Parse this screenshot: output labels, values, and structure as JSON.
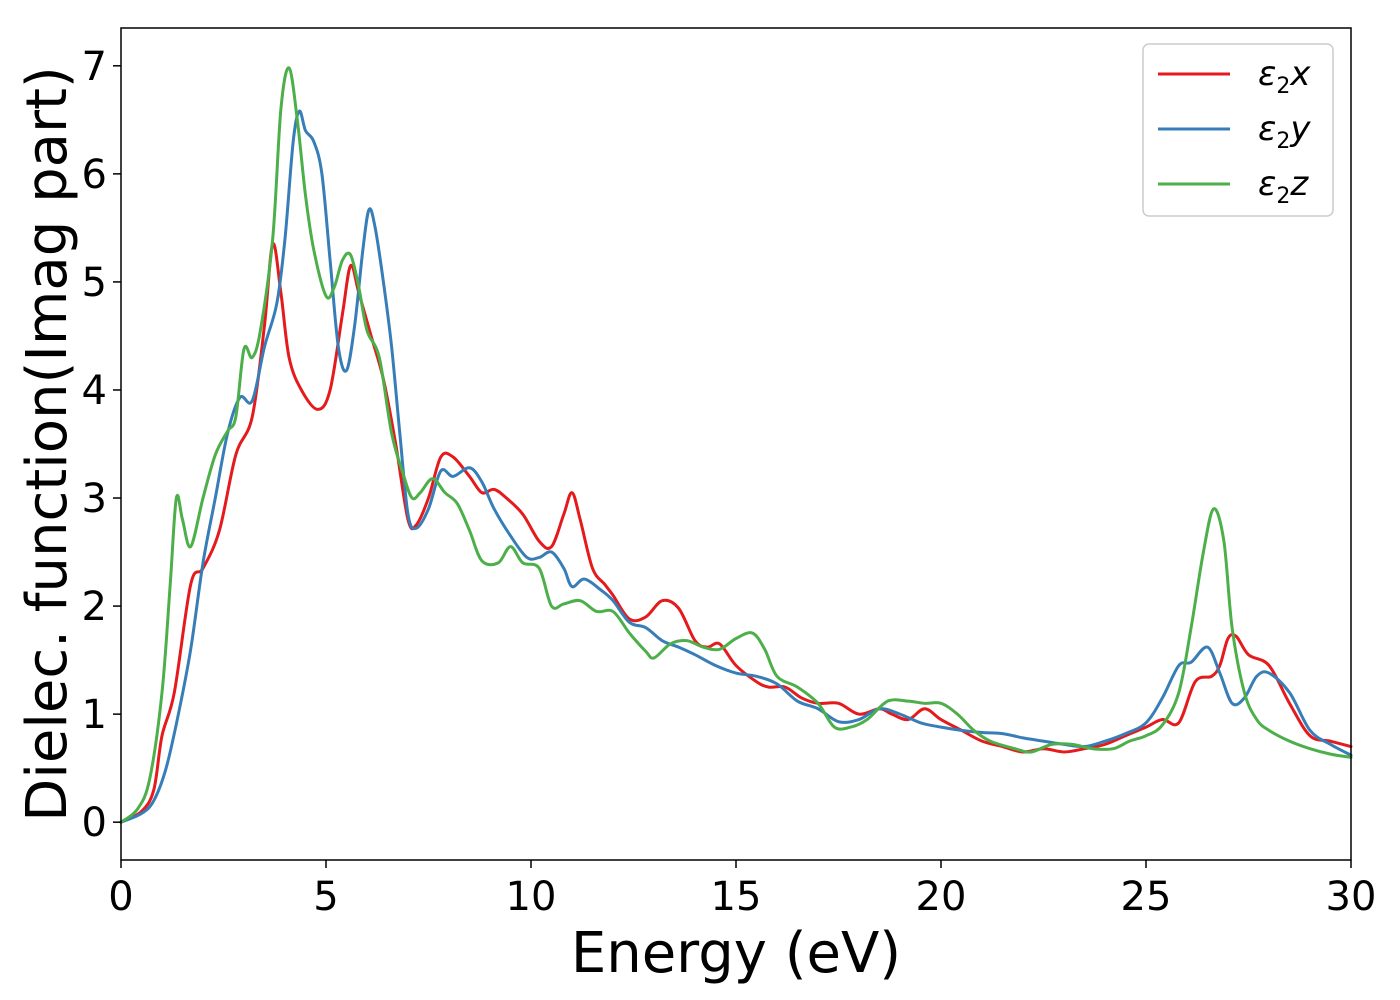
{
  "chart_data": {
    "type": "line",
    "xlabel": "Energy (eV)",
    "ylabel": "Dielec. function(Imag part)",
    "xlim": [
      0,
      30
    ],
    "ylim": [
      -0.35,
      7.35
    ],
    "xticks": [
      0,
      5,
      10,
      15,
      20,
      25,
      30
    ],
    "yticks": [
      0,
      1,
      2,
      3,
      4,
      5,
      6,
      7
    ],
    "grid": false,
    "legend_position": "top-right",
    "series": [
      {
        "name": "ε2x",
        "legend_base": "ε",
        "legend_sub": "2",
        "legend_tail": "x",
        "color": "#e41a1c",
        "points": [
          [
            0,
            0
          ],
          [
            0.5,
            0.1
          ],
          [
            0.8,
            0.3
          ],
          [
            1.0,
            0.8
          ],
          [
            1.3,
            1.2
          ],
          [
            1.7,
            2.2
          ],
          [
            2.0,
            2.35
          ],
          [
            2.4,
            2.7
          ],
          [
            2.8,
            3.4
          ],
          [
            3.2,
            3.75
          ],
          [
            3.5,
            4.6
          ],
          [
            3.7,
            5.35
          ],
          [
            3.9,
            4.9
          ],
          [
            4.1,
            4.3
          ],
          [
            4.4,
            4.0
          ],
          [
            4.8,
            3.82
          ],
          [
            5.1,
            4.0
          ],
          [
            5.4,
            4.7
          ],
          [
            5.6,
            5.15
          ],
          [
            5.8,
            4.9
          ],
          [
            6.1,
            4.5
          ],
          [
            6.4,
            4.1
          ],
          [
            6.7,
            3.5
          ],
          [
            7.0,
            2.8
          ],
          [
            7.2,
            2.75
          ],
          [
            7.5,
            3.0
          ],
          [
            7.8,
            3.38
          ],
          [
            8.1,
            3.38
          ],
          [
            8.5,
            3.2
          ],
          [
            8.8,
            3.05
          ],
          [
            9.1,
            3.08
          ],
          [
            9.4,
            3.0
          ],
          [
            9.8,
            2.85
          ],
          [
            10.2,
            2.6
          ],
          [
            10.5,
            2.55
          ],
          [
            10.8,
            2.85
          ],
          [
            11.0,
            3.05
          ],
          [
            11.2,
            2.8
          ],
          [
            11.5,
            2.35
          ],
          [
            11.8,
            2.2
          ],
          [
            12.0,
            2.1
          ],
          [
            12.4,
            1.88
          ],
          [
            12.8,
            1.9
          ],
          [
            13.2,
            2.05
          ],
          [
            13.6,
            1.98
          ],
          [
            14.0,
            1.68
          ],
          [
            14.3,
            1.62
          ],
          [
            14.6,
            1.65
          ],
          [
            15.0,
            1.45
          ],
          [
            15.5,
            1.3
          ],
          [
            15.8,
            1.25
          ],
          [
            16.2,
            1.25
          ],
          [
            16.6,
            1.15
          ],
          [
            17.0,
            1.1
          ],
          [
            17.5,
            1.1
          ],
          [
            18.0,
            1.0
          ],
          [
            18.5,
            1.05
          ],
          [
            18.8,
            1.0
          ],
          [
            19.2,
            0.95
          ],
          [
            19.6,
            1.05
          ],
          [
            20.0,
            0.95
          ],
          [
            20.5,
            0.85
          ],
          [
            21.0,
            0.75
          ],
          [
            21.5,
            0.7
          ],
          [
            22.0,
            0.65
          ],
          [
            22.5,
            0.68
          ],
          [
            23.0,
            0.65
          ],
          [
            23.5,
            0.68
          ],
          [
            24.0,
            0.72
          ],
          [
            24.5,
            0.8
          ],
          [
            25.0,
            0.88
          ],
          [
            25.4,
            0.95
          ],
          [
            25.8,
            0.92
          ],
          [
            26.2,
            1.3
          ],
          [
            26.6,
            1.35
          ],
          [
            26.8,
            1.45
          ],
          [
            27.0,
            1.7
          ],
          [
            27.2,
            1.72
          ],
          [
            27.5,
            1.55
          ],
          [
            28.0,
            1.45
          ],
          [
            28.5,
            1.1
          ],
          [
            29.0,
            0.8
          ],
          [
            29.5,
            0.75
          ],
          [
            30.0,
            0.7
          ]
        ]
      },
      {
        "name": "ε2y",
        "legend_base": "ε",
        "legend_sub": "2",
        "legend_tail": "y",
        "color": "#377eb8",
        "points": [
          [
            0,
            0
          ],
          [
            0.5,
            0.08
          ],
          [
            0.8,
            0.2
          ],
          [
            1.1,
            0.5
          ],
          [
            1.4,
            1.0
          ],
          [
            1.7,
            1.6
          ],
          [
            2.0,
            2.4
          ],
          [
            2.3,
            3.0
          ],
          [
            2.6,
            3.6
          ],
          [
            2.9,
            3.93
          ],
          [
            3.2,
            3.9
          ],
          [
            3.5,
            4.4
          ],
          [
            3.8,
            4.8
          ],
          [
            4.0,
            5.4
          ],
          [
            4.2,
            6.3
          ],
          [
            4.35,
            6.58
          ],
          [
            4.5,
            6.4
          ],
          [
            4.7,
            6.3
          ],
          [
            4.9,
            6.0
          ],
          [
            5.1,
            5.2
          ],
          [
            5.3,
            4.4
          ],
          [
            5.5,
            4.18
          ],
          [
            5.7,
            4.6
          ],
          [
            5.9,
            5.3
          ],
          [
            6.05,
            5.67
          ],
          [
            6.2,
            5.5
          ],
          [
            6.4,
            5.0
          ],
          [
            6.6,
            4.4
          ],
          [
            6.8,
            3.6
          ],
          [
            7.0,
            2.85
          ],
          [
            7.2,
            2.72
          ],
          [
            7.5,
            2.9
          ],
          [
            7.8,
            3.25
          ],
          [
            8.1,
            3.2
          ],
          [
            8.5,
            3.28
          ],
          [
            8.8,
            3.15
          ],
          [
            9.1,
            2.9
          ],
          [
            9.5,
            2.65
          ],
          [
            9.9,
            2.45
          ],
          [
            10.2,
            2.45
          ],
          [
            10.5,
            2.5
          ],
          [
            10.8,
            2.35
          ],
          [
            11.0,
            2.18
          ],
          [
            11.3,
            2.25
          ],
          [
            11.7,
            2.15
          ],
          [
            12.0,
            2.05
          ],
          [
            12.4,
            1.85
          ],
          [
            12.8,
            1.8
          ],
          [
            13.2,
            1.68
          ],
          [
            13.6,
            1.62
          ],
          [
            14.0,
            1.55
          ],
          [
            14.5,
            1.45
          ],
          [
            15.0,
            1.38
          ],
          [
            15.5,
            1.35
          ],
          [
            16.0,
            1.28
          ],
          [
            16.5,
            1.12
          ],
          [
            17.0,
            1.05
          ],
          [
            17.5,
            0.93
          ],
          [
            18.0,
            0.95
          ],
          [
            18.5,
            1.05
          ],
          [
            19.0,
            1.0
          ],
          [
            19.5,
            0.92
          ],
          [
            20.0,
            0.88
          ],
          [
            20.5,
            0.85
          ],
          [
            21.0,
            0.83
          ],
          [
            21.5,
            0.82
          ],
          [
            22.0,
            0.78
          ],
          [
            22.5,
            0.75
          ],
          [
            23.0,
            0.72
          ],
          [
            23.5,
            0.7
          ],
          [
            24.0,
            0.75
          ],
          [
            24.5,
            0.82
          ],
          [
            25.0,
            0.92
          ],
          [
            25.4,
            1.15
          ],
          [
            25.8,
            1.45
          ],
          [
            26.1,
            1.48
          ],
          [
            26.5,
            1.62
          ],
          [
            26.8,
            1.38
          ],
          [
            27.1,
            1.1
          ],
          [
            27.4,
            1.15
          ],
          [
            27.7,
            1.35
          ],
          [
            28.0,
            1.38
          ],
          [
            28.5,
            1.2
          ],
          [
            29.0,
            0.85
          ],
          [
            29.5,
            0.72
          ],
          [
            30.0,
            0.62
          ]
        ]
      },
      {
        "name": "ε2z",
        "legend_base": "ε",
        "legend_sub": "2",
        "legend_tail": "z",
        "color": "#4daf4a",
        "points": [
          [
            0,
            0
          ],
          [
            0.4,
            0.12
          ],
          [
            0.7,
            0.4
          ],
          [
            1.0,
            1.2
          ],
          [
            1.2,
            2.2
          ],
          [
            1.35,
            3.0
          ],
          [
            1.5,
            2.8
          ],
          [
            1.7,
            2.55
          ],
          [
            2.0,
            3.0
          ],
          [
            2.3,
            3.4
          ],
          [
            2.6,
            3.62
          ],
          [
            2.8,
            3.75
          ],
          [
            3.0,
            4.38
          ],
          [
            3.2,
            4.3
          ],
          [
            3.4,
            4.55
          ],
          [
            3.7,
            5.4
          ],
          [
            3.9,
            6.6
          ],
          [
            4.1,
            6.98
          ],
          [
            4.3,
            6.5
          ],
          [
            4.5,
            5.8
          ],
          [
            4.7,
            5.3
          ],
          [
            5.0,
            4.87
          ],
          [
            5.2,
            4.95
          ],
          [
            5.4,
            5.2
          ],
          [
            5.6,
            5.25
          ],
          [
            5.8,
            4.95
          ],
          [
            6.0,
            4.55
          ],
          [
            6.3,
            4.3
          ],
          [
            6.6,
            3.6
          ],
          [
            6.9,
            3.2
          ],
          [
            7.1,
            3.0
          ],
          [
            7.3,
            3.05
          ],
          [
            7.6,
            3.18
          ],
          [
            7.9,
            3.05
          ],
          [
            8.2,
            2.95
          ],
          [
            8.5,
            2.7
          ],
          [
            8.8,
            2.42
          ],
          [
            9.2,
            2.4
          ],
          [
            9.5,
            2.55
          ],
          [
            9.8,
            2.4
          ],
          [
            10.2,
            2.35
          ],
          [
            10.5,
            2.0
          ],
          [
            10.8,
            2.02
          ],
          [
            11.2,
            2.05
          ],
          [
            11.6,
            1.95
          ],
          [
            12.0,
            1.95
          ],
          [
            12.4,
            1.75
          ],
          [
            12.8,
            1.58
          ],
          [
            13.0,
            1.52
          ],
          [
            13.4,
            1.65
          ],
          [
            13.8,
            1.68
          ],
          [
            14.2,
            1.62
          ],
          [
            14.6,
            1.6
          ],
          [
            15.0,
            1.7
          ],
          [
            15.4,
            1.75
          ],
          [
            15.7,
            1.6
          ],
          [
            16.0,
            1.35
          ],
          [
            16.5,
            1.25
          ],
          [
            17.0,
            1.1
          ],
          [
            17.4,
            0.88
          ],
          [
            17.8,
            0.88
          ],
          [
            18.2,
            0.95
          ],
          [
            18.7,
            1.12
          ],
          [
            19.2,
            1.12
          ],
          [
            19.6,
            1.1
          ],
          [
            20.0,
            1.1
          ],
          [
            20.4,
            1.0
          ],
          [
            20.8,
            0.85
          ],
          [
            21.2,
            0.75
          ],
          [
            21.8,
            0.68
          ],
          [
            22.2,
            0.65
          ],
          [
            22.7,
            0.72
          ],
          [
            23.2,
            0.72
          ],
          [
            23.7,
            0.68
          ],
          [
            24.2,
            0.68
          ],
          [
            24.6,
            0.75
          ],
          [
            25.0,
            0.8
          ],
          [
            25.4,
            0.9
          ],
          [
            25.8,
            1.2
          ],
          [
            26.1,
            1.8
          ],
          [
            26.4,
            2.5
          ],
          [
            26.65,
            2.9
          ],
          [
            26.9,
            2.6
          ],
          [
            27.1,
            1.8
          ],
          [
            27.4,
            1.2
          ],
          [
            27.7,
            0.95
          ],
          [
            28.0,
            0.85
          ],
          [
            28.5,
            0.75
          ],
          [
            29.0,
            0.68
          ],
          [
            29.5,
            0.63
          ],
          [
            30.0,
            0.6
          ]
        ]
      }
    ]
  }
}
